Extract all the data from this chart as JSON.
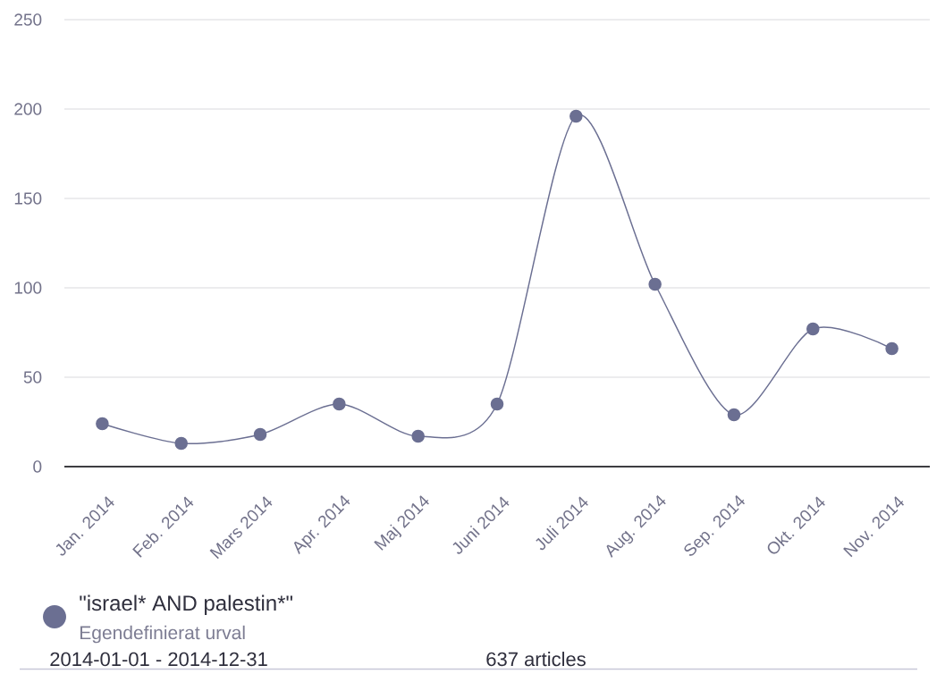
{
  "chart_data": {
    "type": "line",
    "categories": [
      "Jan. 2014",
      "Feb. 2014",
      "Mars 2014",
      "Apr. 2014",
      "Maj 2014",
      "Juni 2014",
      "Juli 2014",
      "Aug. 2014",
      "Sep. 2014",
      "Okt. 2014",
      "Nov. 2014"
    ],
    "series": [
      {
        "name": "\"israel* AND palestin*\"",
        "color": "#6b6f92",
        "values": [
          24,
          13,
          18,
          35,
          17,
          35,
          196,
          102,
          29,
          77,
          66
        ]
      }
    ],
    "ylim": [
      0,
      250
    ],
    "yticks": [
      0,
      50,
      100,
      150,
      200,
      250
    ],
    "grid": "y",
    "marker": "circle",
    "legend": "bottom",
    "annotations": [
      "Egendefinierat urval",
      "2014-01-01 - 2014-12-31",
      "637 articles"
    ]
  }
}
